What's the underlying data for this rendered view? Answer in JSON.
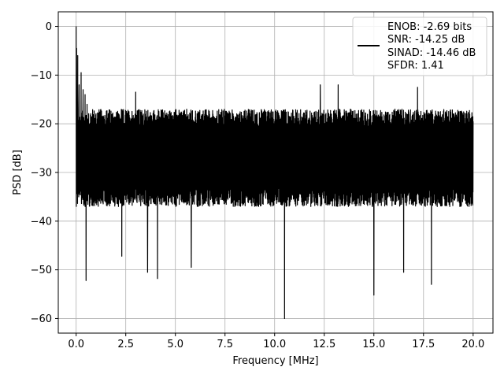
{
  "chart_data": {
    "type": "line",
    "title": "",
    "xlabel": "Frequency [MHz]",
    "ylabel": "PSD [dB]",
    "xlim": [
      -0.9,
      21.0
    ],
    "ylim": [
      -63.0,
      3.0
    ],
    "xticks": [
      0.0,
      2.5,
      5.0,
      7.5,
      10.0,
      12.5,
      15.0,
      17.5,
      20.0
    ],
    "xtick_labels": [
      "0.0",
      "2.5",
      "5.0",
      "7.5",
      "10.0",
      "12.5",
      "15.0",
      "17.5",
      "20.0"
    ],
    "yticks": [
      0,
      -10,
      -20,
      -30,
      -40,
      -50,
      -60
    ],
    "ytick_labels": [
      "0",
      "−10",
      "−20",
      "−30",
      "−40",
      "−50",
      "−60"
    ],
    "grid": true,
    "legend_position": "top-right",
    "series": [
      {
        "name": "ENOB: -2.69 bits\nSNR: -14.25 dB\nSINAD: -14.46 dB\nSFDR: 1.41",
        "color": "#000000",
        "x_range": [
          0.0,
          20.0
        ],
        "band_upper_db": -20.0,
        "band_lower_db": -34.0,
        "dc_peak": {
          "x": 0.0,
          "y": 0.0
        },
        "points": [
          {
            "x": 0.0,
            "y": 0.0
          },
          {
            "x": 0.02,
            "y": -4.5
          },
          {
            "x": 0.05,
            "y": -18.0
          },
          {
            "x": 0.08,
            "y": -6.0
          },
          {
            "x": 0.1,
            "y": -29.0
          },
          {
            "x": 0.15,
            "y": -12.0
          },
          {
            "x": 0.2,
            "y": -21.0
          },
          {
            "x": 0.25,
            "y": -9.5
          },
          {
            "x": 0.3,
            "y": -24.0
          },
          {
            "x": 0.35,
            "y": -13.0
          },
          {
            "x": 0.4,
            "y": -36.5
          },
          {
            "x": 0.45,
            "y": -14.0
          },
          {
            "x": 0.5,
            "y": -52.2
          },
          {
            "x": 0.55,
            "y": -16.0
          },
          {
            "x": 2.3,
            "y": -47.2
          },
          {
            "x": 3.0,
            "y": -13.5
          },
          {
            "x": 3.6,
            "y": -50.5
          },
          {
            "x": 4.1,
            "y": -51.8
          },
          {
            "x": 5.8,
            "y": -49.5
          },
          {
            "x": 10.5,
            "y": -60.0
          },
          {
            "x": 12.3,
            "y": -12.0
          },
          {
            "x": 13.2,
            "y": -12.0
          },
          {
            "x": 15.0,
            "y": -55.2
          },
          {
            "x": 16.5,
            "y": -50.5
          },
          {
            "x": 17.2,
            "y": -12.5
          },
          {
            "x": 17.9,
            "y": -53.0
          },
          {
            "x": 20.0,
            "y": -19.5
          }
        ]
      }
    ],
    "legend_lines": [
      "ENOB: -2.69 bits",
      "SNR: -14.25 dB",
      "SINAD: -14.46 dB",
      "SFDR: 1.41"
    ]
  }
}
